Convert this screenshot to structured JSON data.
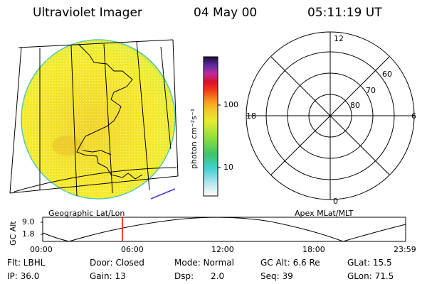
{
  "header": {
    "title": "Ultraviolet Imager",
    "date": "04 May 00",
    "time": "05:11:19 UT"
  },
  "colorbar": {
    "unit": "photon cm⁻²s⁻¹",
    "ticks": [
      "100",
      "10"
    ],
    "scale": "log"
  },
  "polar": {
    "hour_labels": [
      "12",
      "18",
      "6",
      "0"
    ],
    "lat_labels": [
      "60",
      "70",
      "80"
    ]
  },
  "panels": {
    "left_caption": "Geographic Lat/Lon",
    "right_caption": "Apex MLat/MLT"
  },
  "altitude_plot": {
    "axis_title": "GC Alt",
    "y_ticks": [
      "9.0",
      "1.8"
    ],
    "x_ticks": [
      "00:00",
      "06:00",
      "12:00",
      "18:00",
      "23:59"
    ],
    "current_time_marker": "05:11"
  },
  "footer": {
    "flt": "Flt: LBHL",
    "door": "Door: Closed",
    "mode": "Mode: Normal",
    "gc_alt": "GC Alt: 6.6 Re",
    "glat": "GLat: 15.5",
    "ip": "IP: 36.0",
    "gain": "Gain: 13",
    "dsp": "Dsp:",
    "dsp_val": "2.0",
    "seq": "Seq: 39",
    "glon": "GLon: 71.5"
  },
  "colors": {
    "marker": "#ff0000",
    "limb": "#3b3bd6",
    "disk_fill": "#f4ec2c",
    "disk_edge": "#5ccf5c"
  }
}
